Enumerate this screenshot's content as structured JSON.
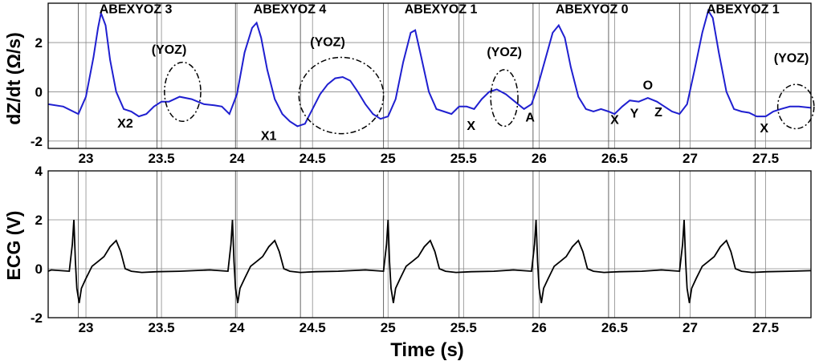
{
  "chart_data": [
    {
      "type": "line",
      "ylabel": "dZ/dt (Ω/s)",
      "xlim": [
        22.75,
        27.8
      ],
      "ylim": [
        -2.3,
        3.6
      ],
      "yticks": [
        -2,
        0,
        2
      ],
      "xticks": [
        23,
        23.5,
        24,
        24.5,
        25,
        25.5,
        26,
        26.5,
        27,
        27.5
      ],
      "xtick_labels": [
        "23",
        "23.5",
        "24",
        "24.5",
        "25",
        "25.5",
        "26",
        "26.5",
        "27",
        "27.5"
      ],
      "ytick_labels": [
        "-2",
        "0",
        "2"
      ],
      "grid": true,
      "color": "#1f1fd0",
      "vlines": [
        22.95,
        23.47,
        23.99,
        24.42,
        24.97,
        25.47,
        25.96,
        26.46,
        26.93,
        27.43
      ],
      "series": [
        {
          "x": [
            22.75,
            22.85,
            22.95,
            23.0,
            23.05,
            23.08,
            23.1,
            23.13,
            23.16,
            23.2,
            23.25,
            23.3,
            23.35,
            23.4,
            23.45,
            23.5,
            23.55,
            23.62,
            23.7,
            23.78,
            23.85,
            23.9,
            23.95,
            24.0,
            24.05,
            24.1,
            24.13,
            24.16,
            24.2,
            24.25,
            24.3,
            24.35,
            24.4,
            24.45,
            24.5,
            24.55,
            24.6,
            24.65,
            24.7,
            24.75,
            24.8,
            24.85,
            24.9,
            24.95,
            25.0,
            25.05,
            25.1,
            25.15,
            25.18,
            25.22,
            25.27,
            25.32,
            25.37,
            25.42,
            25.47,
            25.52,
            25.57,
            25.62,
            25.67,
            25.72,
            25.78,
            25.84,
            25.9,
            25.95,
            25.99,
            26.04,
            26.09,
            26.13,
            26.17,
            26.21,
            26.26,
            26.31,
            26.36,
            26.41,
            26.46,
            26.5,
            26.55,
            26.6,
            26.66,
            26.72,
            26.78,
            26.83,
            26.88,
            26.93,
            26.98,
            27.03,
            27.08,
            27.12,
            27.15,
            27.19,
            27.24,
            27.29,
            27.34,
            27.39,
            27.44,
            27.5,
            27.55,
            27.6,
            27.66,
            27.72,
            27.8
          ],
          "y": [
            -0.5,
            -0.6,
            -0.9,
            -0.2,
            1.4,
            2.6,
            3.2,
            2.7,
            1.3,
            0.0,
            -0.7,
            -0.8,
            -1.0,
            -0.9,
            -0.6,
            -0.4,
            -0.4,
            -0.2,
            -0.3,
            -0.5,
            -0.55,
            -0.6,
            -0.9,
            -0.1,
            1.6,
            2.6,
            2.8,
            2.2,
            0.9,
            -0.3,
            -0.9,
            -1.2,
            -1.4,
            -1.3,
            -0.7,
            -0.1,
            0.3,
            0.55,
            0.6,
            0.45,
            0.0,
            -0.5,
            -0.9,
            -1.1,
            -1.0,
            -0.3,
            1.2,
            2.4,
            2.5,
            1.4,
            0.0,
            -0.7,
            -0.8,
            -0.9,
            -0.6,
            -0.6,
            -0.7,
            -0.3,
            0.0,
            0.1,
            -0.1,
            -0.4,
            -0.7,
            -0.5,
            0.2,
            1.3,
            2.4,
            2.7,
            2.2,
            1.0,
            -0.2,
            -0.7,
            -0.8,
            -0.7,
            -0.8,
            -0.9,
            -0.6,
            -0.35,
            -0.4,
            -0.25,
            -0.4,
            -0.6,
            -0.8,
            -0.9,
            -0.5,
            0.9,
            2.4,
            3.3,
            3.0,
            1.6,
            0.0,
            -0.7,
            -0.8,
            -0.85,
            -1.0,
            -1.0,
            -0.8,
            -0.7,
            -0.6,
            -0.6,
            -0.65
          ]
        }
      ],
      "annotations": [
        {
          "text": "ABEXYOZ 3",
          "x": 23.33,
          "y": 3.2
        },
        {
          "text": "ABEXYOZ 4",
          "x": 24.35,
          "y": 3.2
        },
        {
          "text": "ABEXYOZ 1",
          "x": 25.35,
          "y": 3.2
        },
        {
          "text": "ABEXYOZ 0",
          "x": 26.35,
          "y": 3.2
        },
        {
          "text": "ABEXYOZ 1",
          "x": 27.35,
          "y": 3.2
        },
        {
          "text": "(YOZ)",
          "x": 23.55,
          "y": 1.55
        },
        {
          "text": "(YOZ)",
          "x": 24.6,
          "y": 1.85
        },
        {
          "text": "(YOZ)",
          "x": 25.77,
          "y": 1.45
        },
        {
          "text": "(YOZ)",
          "x": 27.67,
          "y": 1.2
        },
        {
          "text": "X2",
          "x": 23.26,
          "y": -1.45
        },
        {
          "text": "X1",
          "x": 24.21,
          "y": -1.95
        },
        {
          "text": "X",
          "x": 25.55,
          "y": -1.55
        },
        {
          "text": "A",
          "x": 25.94,
          "y": -1.2
        },
        {
          "text": "X",
          "x": 26.5,
          "y": -1.3
        },
        {
          "text": "Y",
          "x": 26.63,
          "y": -1.05
        },
        {
          "text": "O",
          "x": 26.72,
          "y": 0.1
        },
        {
          "text": "Z",
          "x": 26.79,
          "y": -1.0
        },
        {
          "text": "X",
          "x": 27.49,
          "y": -1.65
        }
      ],
      "ellipses": [
        {
          "cx": 23.64,
          "cy": 0.0,
          "rx": 0.12,
          "ry": 1.2
        },
        {
          "cx": 24.69,
          "cy": -0.15,
          "rx": 0.28,
          "ry": 1.55
        },
        {
          "cx": 25.77,
          "cy": -0.25,
          "rx": 0.09,
          "ry": 1.15
        },
        {
          "cx": 27.7,
          "cy": -0.6,
          "rx": 0.12,
          "ry": 0.9
        }
      ]
    },
    {
      "type": "line",
      "xlabel": "Time (s)",
      "ylabel": "ECG (V)",
      "xlim": [
        22.75,
        27.8
      ],
      "ylim": [
        -2,
        4
      ],
      "yticks": [
        -2,
        0,
        2,
        4
      ],
      "xticks": [
        23,
        23.5,
        24,
        24.5,
        25,
        25.5,
        26,
        26.5,
        27,
        27.5
      ],
      "xtick_labels": [
        "23",
        "23.5",
        "24",
        "24.5",
        "25",
        "25.5",
        "26",
        "26.5",
        "27",
        "27.5"
      ],
      "ytick_labels": [
        "-2",
        "0",
        "2",
        "4"
      ],
      "grid": true,
      "color": "#000000",
      "vlines": [
        22.95,
        23.47,
        23.99,
        24.42,
        24.97,
        25.47,
        25.96,
        26.46,
        26.93,
        27.43
      ],
      "beat_times": [
        22.92,
        23.97,
        25.0,
        25.98,
        26.96
      ],
      "series": [
        {
          "beat_template": {
            "dt": [
              -0.15,
              -0.03,
              -0.01,
              0.0,
              0.01,
              0.02,
              0.035,
              0.05,
              0.08,
              0.12,
              0.16,
              0.2,
              0.24,
              0.28,
              0.31,
              0.34,
              0.38,
              0.45,
              0.55,
              0.7
            ],
            "v": [
              -0.05,
              -0.1,
              1.0,
              2.0,
              0.3,
              -0.8,
              -1.4,
              -0.8,
              -0.4,
              0.1,
              0.3,
              0.5,
              0.9,
              1.15,
              0.7,
              0.0,
              -0.1,
              -0.15,
              -0.12,
              -0.1
            ]
          }
        }
      ]
    }
  ]
}
